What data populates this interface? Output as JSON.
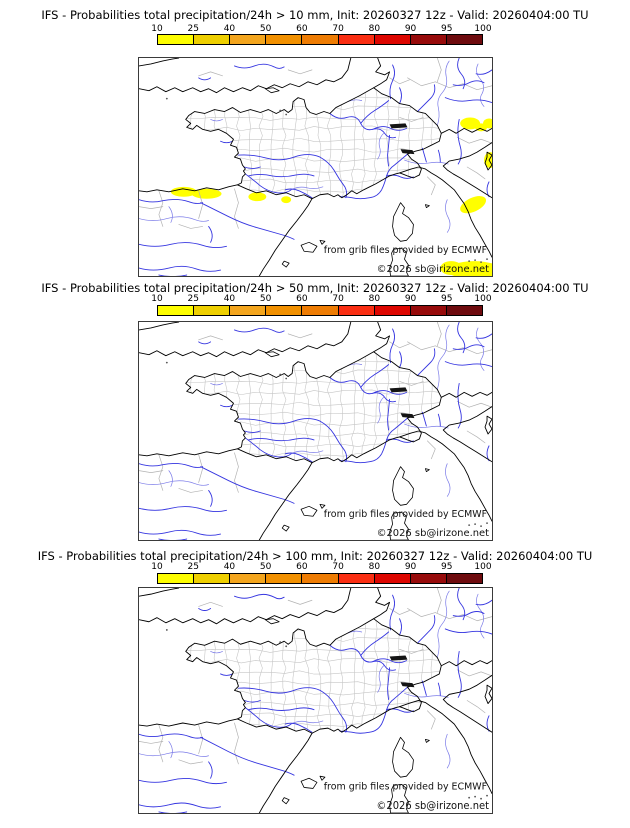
{
  "page": {
    "background": "#ffffff"
  },
  "colorbar": {
    "tick_labels": [
      "10",
      "25",
      "40",
      "50",
      "60",
      "70",
      "80",
      "90",
      "95",
      "100"
    ],
    "segment_colors": [
      "#fdfd00",
      "#eecf00",
      "#f3a51d",
      "#f19000",
      "#ee7c03",
      "#fa2e12",
      "#dd0600",
      "#970b0b",
      "#6e0b0e"
    ]
  },
  "panels": [
    {
      "title": "IFS - Probabilities total precipitation/24h > 10 mm, Init: 20260327 12z - Valid: 20260404:00 TU",
      "threshold": "10 mm",
      "has_probability_areas": true
    },
    {
      "title": "IFS - Probabilities total precipitation/24h > 50 mm, Init: 20260327 12z - Valid: 20260404:00 TU",
      "threshold": "50 mm",
      "has_probability_areas": false
    },
    {
      "title": "IFS - Probabilities total precipitation/24h > 100 mm, Init: 20260327 12z - Valid: 20260404:00 TU",
      "threshold": "100 mm",
      "has_probability_areas": false
    }
  ],
  "map_annotations": {
    "attribution": "from grib files provided by ECMWF",
    "copyright": "©2026 sb@irizone.net"
  },
  "map_colors": {
    "coastline": "#000000",
    "department_border": "#c6c6c6",
    "foreign_border": "#b2b2b2",
    "river": "#3535e0",
    "minor_river": "#7a7ae8",
    "lake": "#141414",
    "probability_highlight": "#ffff00",
    "frame": "#3a3a3a"
  }
}
